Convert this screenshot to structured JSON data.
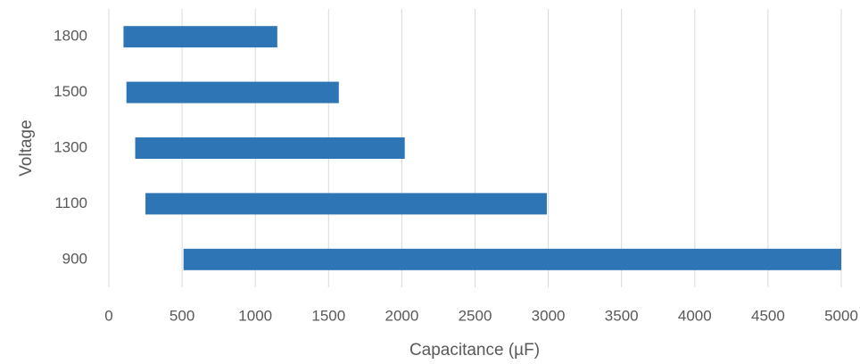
{
  "chart_data": {
    "type": "range-bar",
    "orientation": "horizontal",
    "categories": [
      "900",
      "1100",
      "1300",
      "1500",
      "1800"
    ],
    "starts": [
      510,
      250,
      180,
      120,
      100
    ],
    "ends": [
      5000,
      2990,
      2020,
      1570,
      1150
    ],
    "color": "#2e75b6",
    "xlabel": "Capacitance (µF)",
    "ylabel": "Voltage",
    "xlim": [
      0,
      5000
    ],
    "xticks": [
      0,
      500,
      1000,
      1500,
      2000,
      2500,
      3000,
      3500,
      4000,
      4500,
      5000
    ],
    "grid": true
  }
}
